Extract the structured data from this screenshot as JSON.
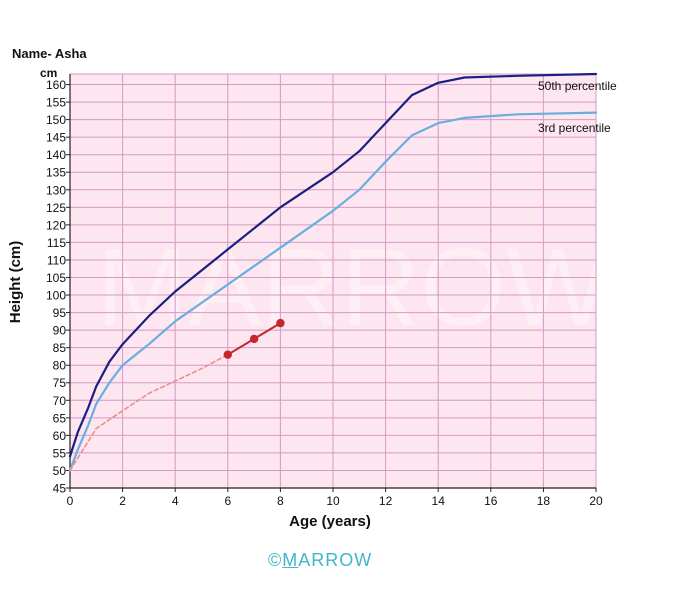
{
  "header": {
    "name_label": "Name- Asha",
    "unit_label": "cm"
  },
  "watermark": "MARROW",
  "footer": {
    "copyright_symbol": "©",
    "brand_first": "M",
    "brand_rest": "ARROW"
  },
  "colors": {
    "background": "#fde6ef",
    "grid": "#d49ac6",
    "p50": "#1b1f82",
    "p3": "#6aaee0",
    "patient": "#c5252b",
    "patient_estimated": "#e8908f",
    "brand": "#3fb7c9"
  },
  "chart_data": {
    "type": "line",
    "title": "",
    "xlabel": "Age (years)",
    "ylabel": "Height (cm)",
    "xlim": [
      0,
      20
    ],
    "ylim": [
      45,
      163
    ],
    "x_ticks": [
      0,
      2,
      4,
      6,
      8,
      10,
      12,
      14,
      16,
      18,
      20
    ],
    "y_ticks": [
      45,
      50,
      55,
      60,
      65,
      70,
      75,
      80,
      85,
      90,
      95,
      100,
      105,
      110,
      115,
      120,
      125,
      130,
      135,
      140,
      145,
      150,
      155,
      160
    ],
    "grid": true,
    "series": [
      {
        "name": "50th percentile",
        "style": "solid",
        "points": [
          [
            0,
            54
          ],
          [
            0.3,
            61
          ],
          [
            0.7,
            68
          ],
          [
            1,
            74
          ],
          [
            1.5,
            81
          ],
          [
            2,
            86
          ],
          [
            3,
            94
          ],
          [
            4,
            101
          ],
          [
            5,
            107
          ],
          [
            6,
            113
          ],
          [
            8,
            125
          ],
          [
            10,
            135
          ],
          [
            11,
            141
          ],
          [
            12,
            149
          ],
          [
            13,
            157
          ],
          [
            14,
            160.5
          ],
          [
            15,
            162
          ],
          [
            17,
            162.5
          ],
          [
            20,
            163
          ]
        ]
      },
      {
        "name": "3rd percentile",
        "style": "solid",
        "points": [
          [
            0,
            50
          ],
          [
            0.3,
            56
          ],
          [
            0.7,
            63
          ],
          [
            1,
            69
          ],
          [
            1.5,
            75
          ],
          [
            2,
            80
          ],
          [
            3,
            86
          ],
          [
            4,
            92.5
          ],
          [
            6,
            103
          ],
          [
            8,
            113.5
          ],
          [
            10,
            124
          ],
          [
            11,
            130
          ],
          [
            12,
            138
          ],
          [
            13,
            145.5
          ],
          [
            14,
            149
          ],
          [
            15,
            150.5
          ],
          [
            17,
            151.5
          ],
          [
            20,
            152
          ]
        ]
      },
      {
        "name": "",
        "style": "dashed",
        "points": [
          [
            0,
            50
          ],
          [
            1,
            62
          ],
          [
            2,
            67
          ],
          [
            3,
            72
          ],
          [
            4,
            75.5
          ],
          [
            5,
            79
          ],
          [
            6,
            83
          ]
        ]
      },
      {
        "name": "",
        "style": "solid-markers",
        "points": [
          [
            6,
            83
          ],
          [
            7,
            87.5
          ],
          [
            8,
            92
          ]
        ]
      }
    ]
  }
}
